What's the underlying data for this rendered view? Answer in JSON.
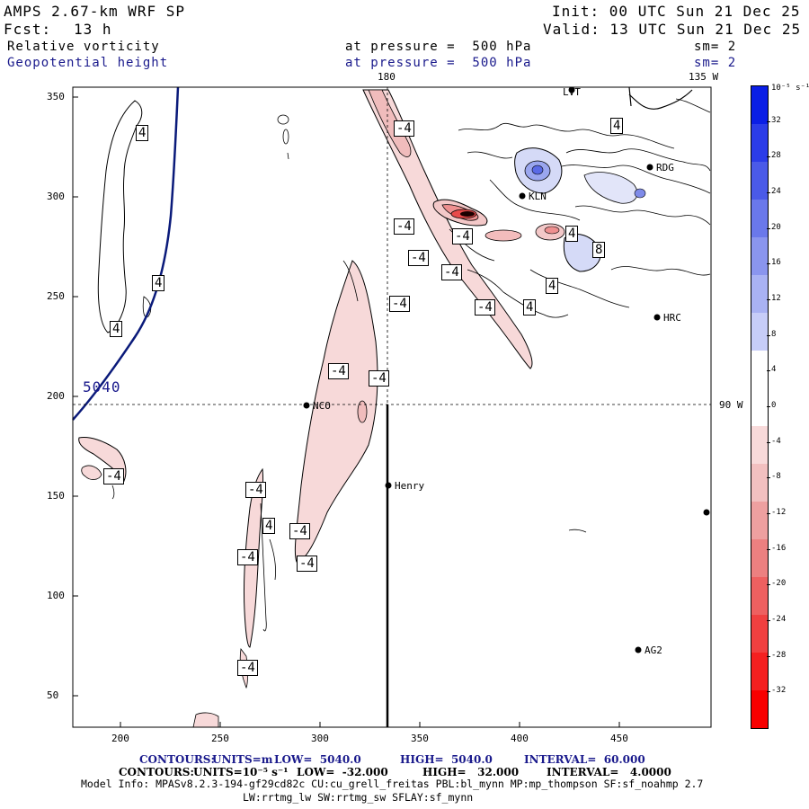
{
  "header": {
    "model": "AMPS 2.67-km WRF SP",
    "forecast_label": "Fcst:",
    "forecast_hours": "13 h",
    "init": "Init: 00 UTC Sun 21 Dec 25",
    "valid": "Valid: 13 UTC Sun 21 Dec 25",
    "field1": "Relative vorticity",
    "field2": "Geopotential height",
    "pressure1": "at pressure =  500 hPa",
    "pressure2": "at pressure =  500 hPa",
    "smooth1": "sm= 2",
    "smooth2": "sm= 2"
  },
  "map": {
    "meridian_label": "180",
    "meridian2_label": "135 W",
    "latline_label": "90 W",
    "height_label": "5040",
    "x_ticks": [
      "200",
      "250",
      "300",
      "350",
      "400",
      "450"
    ],
    "y_ticks": [
      "350",
      "300",
      "250",
      "200",
      "150",
      "100",
      "50"
    ],
    "stations": [
      "LVT",
      "RDG",
      "KLN",
      "HRC",
      "NCO",
      "Henry",
      "AG2"
    ],
    "contour_labels_neg": [
      "-4",
      "-4",
      "-4",
      "-4",
      "-4",
      "-4",
      "-4",
      "-4",
      "-4",
      "-4",
      "-4",
      "-4",
      "-4",
      "-4",
      "-4"
    ],
    "contour_labels_pos": [
      "4",
      "4",
      "4",
      "4",
      "4",
      "4",
      "4",
      "4",
      "8"
    ]
  },
  "colorbar": {
    "unit_label": "10⁻⁵ s⁻¹",
    "labels": [
      "32",
      "28",
      "24",
      "20",
      "16",
      "12",
      "8",
      "4",
      "0",
      "-4",
      "-8",
      "-12",
      "-16",
      "-20",
      "-24",
      "-28",
      "-32"
    ],
    "colors": [
      "#0a1ee6",
      "#2b3ce8",
      "#4a5ae8",
      "#6a78ea",
      "#8a95ee",
      "#a9b2f3",
      "#c7cdf8",
      "#ffffff",
      "#ffffff",
      "#f8dada",
      "#f2c0c0",
      "#eea0a0",
      "#ec8080",
      "#ee6060",
      "#f04040",
      "#f42020",
      "#f80000"
    ]
  },
  "footer": {
    "line1_contours": "CONTOURS:",
    "line1_units": "UNITS=m",
    "line1_low": "LOW=  5040.0",
    "line1_high": "HIGH=  5040.0",
    "line1_interval": "INTERVAL=  60.000",
    "line2_contours": "CONTOURS:",
    "line2_units": "UNITS=10⁻⁵ s⁻¹",
    "line2_low": "LOW=  -32.000",
    "line2_high": "HIGH=   32.000",
    "line2_interval": "INTERVAL=   4.0000",
    "model_info": "Model Info: MPASv8.2.3-194-gf29cd82c CU:cu_grell_freitas PBL:bl_mynn MP:mp_thompson SF:sf_noahmp 2.7",
    "model_info2": "LW:rrtmg_lw SW:rrtmg_sw SFLAY:sf_mynn"
  }
}
